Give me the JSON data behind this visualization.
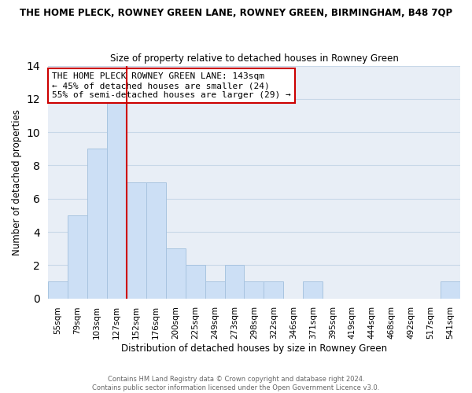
{
  "title_main": "THE HOME PLECK, ROWNEY GREEN LANE, ROWNEY GREEN, BIRMINGHAM, B48 7QP",
  "title_sub": "Size of property relative to detached houses in Rowney Green",
  "xlabel": "Distribution of detached houses by size in Rowney Green",
  "ylabel": "Number of detached properties",
  "bin_labels": [
    "55sqm",
    "79sqm",
    "103sqm",
    "127sqm",
    "152sqm",
    "176sqm",
    "200sqm",
    "225sqm",
    "249sqm",
    "273sqm",
    "298sqm",
    "322sqm",
    "346sqm",
    "371sqm",
    "395sqm",
    "419sqm",
    "444sqm",
    "468sqm",
    "492sqm",
    "517sqm",
    "541sqm"
  ],
  "bar_heights": [
    1,
    5,
    9,
    12,
    7,
    7,
    3,
    2,
    1,
    2,
    1,
    1,
    0,
    1,
    0,
    0,
    0,
    0,
    0,
    0,
    1
  ],
  "bar_color": "#ccdff5",
  "bar_edge_color": "#a8c4e0",
  "vline_x_idx": 4,
  "vline_color": "#cc0000",
  "annotation_title": "THE HOME PLECK ROWNEY GREEN LANE: 143sqm",
  "annotation_line1": "← 45% of detached houses are smaller (24)",
  "annotation_line2": "55% of semi-detached houses are larger (29) →",
  "annotation_box_color": "#ffffff",
  "annotation_border_color": "#cc0000",
  "ylim": [
    0,
    14
  ],
  "yticks": [
    0,
    2,
    4,
    6,
    8,
    10,
    12,
    14
  ],
  "footer1": "Contains HM Land Registry data © Crown copyright and database right 2024.",
  "footer2": "Contains public sector information licensed under the Open Government Licence v3.0.",
  "bg_color": "#ffffff",
  "plot_bg_color": "#e8eef6",
  "grid_color": "#c8d8e8"
}
